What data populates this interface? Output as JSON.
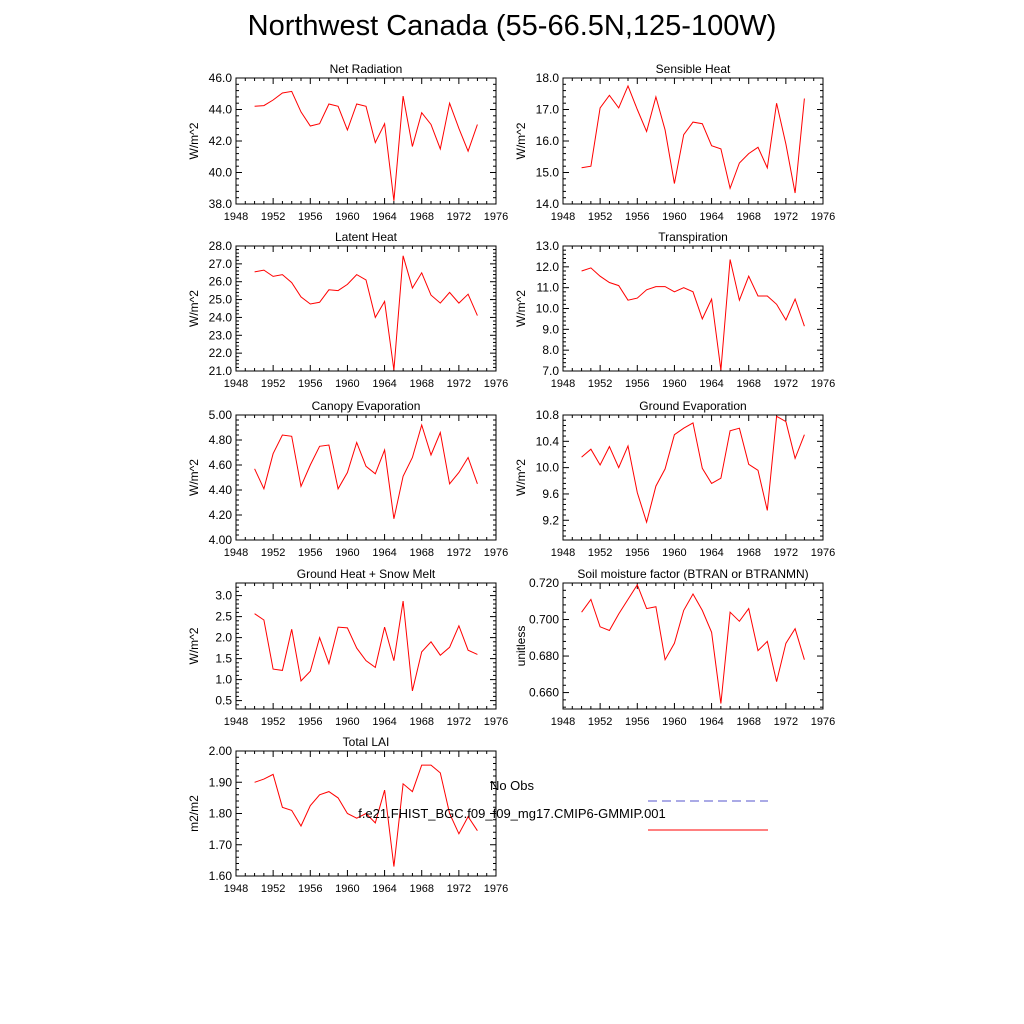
{
  "title": "Northwest Canada (55-66.5N,125-100W)",
  "legend": {
    "obs_label": "No Obs",
    "model_label": "f.e21.FHIST_BGC.f09_f09_mg17.CMIP6-GMMIP.001",
    "obs_color": "#5555cc",
    "model_color": "#ff0000"
  },
  "chart_data": [
    {
      "type": "line",
      "title": "Net Radiation",
      "ylabel": "W/m^2",
      "xlim": [
        1948,
        1976
      ],
      "ylim": [
        38.0,
        46.0
      ],
      "xticks": [
        "1948",
        "1952",
        "1956",
        "1960",
        "1964",
        "1968",
        "1972",
        "1976"
      ],
      "yticks": [
        "38.0",
        "40.0",
        "42.0",
        "44.0",
        "46.0"
      ],
      "x": [
        1950,
        1951,
        1952,
        1953,
        1954,
        1955,
        1956,
        1957,
        1958,
        1959,
        1960,
        1961,
        1962,
        1963,
        1964,
        1965,
        1966,
        1967,
        1968,
        1969,
        1970,
        1971,
        1972,
        1973,
        1974
      ],
      "series": [
        {
          "values": [
            44.2,
            44.25,
            44.6,
            45.05,
            45.15,
            43.85,
            42.95,
            43.1,
            44.35,
            44.2,
            42.7,
            44.35,
            44.2,
            41.9,
            43.1,
            38.2,
            44.85,
            41.65,
            43.8,
            43.05,
            41.5,
            44.4,
            42.8,
            41.35,
            43.05
          ]
        }
      ]
    },
    {
      "type": "line",
      "title": "Sensible Heat",
      "ylabel": "W/m^2",
      "xlim": [
        1948,
        1976
      ],
      "ylim": [
        14.0,
        18.0
      ],
      "xticks": [
        "1948",
        "1952",
        "1956",
        "1960",
        "1964",
        "1968",
        "1972",
        "1976"
      ],
      "yticks": [
        "14.0",
        "15.0",
        "16.0",
        "17.0",
        "18.0"
      ],
      "x": [
        1950,
        1951,
        1952,
        1953,
        1954,
        1955,
        1956,
        1957,
        1958,
        1959,
        1960,
        1961,
        1962,
        1963,
        1964,
        1965,
        1966,
        1967,
        1968,
        1969,
        1970,
        1971,
        1972,
        1973,
        1974
      ],
      "series": [
        {
          "values": [
            15.15,
            15.2,
            17.05,
            17.45,
            17.05,
            17.75,
            17.0,
            16.3,
            17.4,
            16.35,
            14.65,
            16.2,
            16.6,
            16.55,
            15.85,
            15.75,
            14.5,
            15.3,
            15.6,
            15.8,
            15.15,
            17.2,
            15.9,
            14.35,
            17.35
          ]
        }
      ]
    },
    {
      "type": "line",
      "title": "Latent Heat",
      "ylabel": "W/m^2",
      "xlim": [
        1948,
        1976
      ],
      "ylim": [
        21.0,
        28.0
      ],
      "xticks": [
        "1948",
        "1952",
        "1956",
        "1960",
        "1964",
        "1968",
        "1972",
        "1976"
      ],
      "yticks": [
        "21.0",
        "22.0",
        "23.0",
        "24.0",
        "25.0",
        "26.0",
        "27.0",
        "28.0"
      ],
      "x": [
        1950,
        1951,
        1952,
        1953,
        1954,
        1955,
        1956,
        1957,
        1958,
        1959,
        1960,
        1961,
        1962,
        1963,
        1964,
        1965,
        1966,
        1967,
        1968,
        1969,
        1970,
        1971,
        1972,
        1973,
        1974
      ],
      "series": [
        {
          "values": [
            26.55,
            26.65,
            26.3,
            26.4,
            25.95,
            25.15,
            24.75,
            24.85,
            25.55,
            25.5,
            25.85,
            26.4,
            26.1,
            24.0,
            24.9,
            21.05,
            27.45,
            25.65,
            26.5,
            25.25,
            24.8,
            25.4,
            24.8,
            25.3,
            24.1
          ]
        }
      ]
    },
    {
      "type": "line",
      "title": "Transpiration",
      "ylabel": "W/m^2",
      "xlim": [
        1948,
        1976
      ],
      "ylim": [
        7.0,
        13.0
      ],
      "xticks": [
        "1948",
        "1952",
        "1956",
        "1960",
        "1964",
        "1968",
        "1972",
        "1976"
      ],
      "yticks": [
        "7.0",
        "8.0",
        "9.0",
        "10.0",
        "11.0",
        "12.0",
        "13.0"
      ],
      "x": [
        1950,
        1951,
        1952,
        1953,
        1954,
        1955,
        1956,
        1957,
        1958,
        1959,
        1960,
        1961,
        1962,
        1963,
        1964,
        1965,
        1966,
        1967,
        1968,
        1969,
        1970,
        1971,
        1972,
        1973,
        1974
      ],
      "series": [
        {
          "values": [
            11.8,
            11.95,
            11.55,
            11.25,
            11.1,
            10.4,
            10.5,
            10.9,
            11.05,
            11.05,
            10.8,
            11.0,
            10.8,
            9.5,
            10.45,
            7.05,
            12.35,
            10.4,
            11.55,
            10.6,
            10.6,
            10.2,
            9.45,
            10.45,
            9.15
          ]
        }
      ]
    },
    {
      "type": "line",
      "title": "Canopy Evaporation",
      "ylabel": "W/m^2",
      "xlim": [
        1948,
        1976
      ],
      "ylim": [
        4.0,
        5.0
      ],
      "xticks": [
        "1948",
        "1952",
        "1956",
        "1960",
        "1964",
        "1968",
        "1972",
        "1976"
      ],
      "yticks": [
        "4.00",
        "4.20",
        "4.40",
        "4.60",
        "4.80",
        "5.00"
      ],
      "x": [
        1950,
        1951,
        1952,
        1953,
        1954,
        1955,
        1956,
        1957,
        1958,
        1959,
        1960,
        1961,
        1962,
        1963,
        1964,
        1965,
        1966,
        1967,
        1968,
        1969,
        1970,
        1971,
        1972,
        1973,
        1974
      ],
      "series": [
        {
          "values": [
            4.57,
            4.41,
            4.69,
            4.84,
            4.83,
            4.43,
            4.6,
            4.75,
            4.76,
            4.41,
            4.54,
            4.78,
            4.59,
            4.53,
            4.72,
            4.17,
            4.51,
            4.66,
            4.92,
            4.68,
            4.86,
            4.45,
            4.54,
            4.66,
            4.45
          ]
        }
      ]
    },
    {
      "type": "line",
      "title": "Ground Evaporation",
      "ylabel": "W/m^2",
      "xlim": [
        1948,
        1976
      ],
      "ylim": [
        8.9,
        10.8
      ],
      "xticks": [
        "1948",
        "1952",
        "1956",
        "1960",
        "1964",
        "1968",
        "1972",
        "1976"
      ],
      "yticks": [
        "9.2",
        "9.6",
        "10.0",
        "10.4",
        "10.8"
      ],
      "x": [
        1950,
        1951,
        1952,
        1953,
        1954,
        1955,
        1956,
        1957,
        1958,
        1959,
        1960,
        1961,
        1962,
        1963,
        1964,
        1965,
        1966,
        1967,
        1968,
        1969,
        1970,
        1971,
        1972,
        1973,
        1974
      ],
      "series": [
        {
          "values": [
            10.16,
            10.28,
            10.04,
            10.32,
            10.0,
            10.33,
            9.62,
            9.17,
            9.72,
            9.98,
            10.5,
            10.6,
            10.68,
            9.99,
            9.76,
            9.84,
            10.56,
            10.6,
            10.05,
            9.96,
            9.35,
            10.78,
            10.7,
            10.14,
            10.5
          ]
        }
      ]
    },
    {
      "type": "line",
      "title": "Ground Heat + Snow Melt",
      "ylabel": "W/m^2",
      "xlim": [
        1948,
        1976
      ],
      "ylim": [
        0.3,
        3.3
      ],
      "xticks": [
        "1948",
        "1952",
        "1956",
        "1960",
        "1964",
        "1968",
        "1972",
        "1976"
      ],
      "yticks": [
        "0.5",
        "1.0",
        "1.5",
        "2.0",
        "2.5",
        "3.0"
      ],
      "x": [
        1950,
        1951,
        1952,
        1953,
        1954,
        1955,
        1956,
        1957,
        1958,
        1959,
        1960,
        1961,
        1962,
        1963,
        1964,
        1965,
        1966,
        1967,
        1968,
        1969,
        1970,
        1971,
        1972,
        1973,
        1974
      ],
      "series": [
        {
          "values": [
            2.57,
            2.42,
            1.25,
            1.22,
            2.2,
            0.97,
            1.2,
            2.0,
            1.38,
            2.25,
            2.23,
            1.75,
            1.45,
            1.29,
            2.25,
            1.45,
            2.87,
            0.73,
            1.66,
            1.9,
            1.58,
            1.77,
            2.28,
            1.7,
            1.6
          ]
        }
      ]
    },
    {
      "type": "line",
      "title": "Soil moisture factor (BTRAN or BTRANMN)",
      "ylabel": "unitless",
      "xlim": [
        1948,
        1976
      ],
      "ylim": [
        0.651,
        0.72
      ],
      "xticks": [
        "1948",
        "1952",
        "1956",
        "1960",
        "1964",
        "1968",
        "1972",
        "1976"
      ],
      "yticks": [
        "0.660",
        "0.680",
        "0.700",
        "0.720"
      ],
      "x": [
        1950,
        1951,
        1952,
        1953,
        1954,
        1955,
        1956,
        1957,
        1958,
        1959,
        1960,
        1961,
        1962,
        1963,
        1964,
        1965,
        1966,
        1967,
        1968,
        1969,
        1970,
        1971,
        1972,
        1973,
        1974
      ],
      "series": [
        {
          "values": [
            0.704,
            0.711,
            0.696,
            0.694,
            0.703,
            0.711,
            0.719,
            0.706,
            0.707,
            0.678,
            0.687,
            0.705,
            0.714,
            0.705,
            0.693,
            0.654,
            0.704,
            0.699,
            0.706,
            0.683,
            0.688,
            0.666,
            0.687,
            0.695,
            0.678
          ]
        }
      ]
    },
    {
      "type": "line",
      "title": "Total LAI",
      "ylabel": "m2/m2",
      "xlim": [
        1948,
        1976
      ],
      "ylim": [
        1.6,
        2.0
      ],
      "xticks": [
        "1948",
        "1952",
        "1956",
        "1960",
        "1964",
        "1968",
        "1972",
        "1976"
      ],
      "yticks": [
        "1.60",
        "1.70",
        "1.80",
        "1.90",
        "2.00"
      ],
      "x": [
        1950,
        1951,
        1952,
        1953,
        1954,
        1955,
        1956,
        1957,
        1958,
        1959,
        1960,
        1961,
        1962,
        1963,
        1964,
        1965,
        1966,
        1967,
        1968,
        1969,
        1970,
        1971,
        1972,
        1973,
        1974
      ],
      "series": [
        {
          "values": [
            1.9,
            1.91,
            1.925,
            1.82,
            1.81,
            1.76,
            1.825,
            1.86,
            1.87,
            1.85,
            1.8,
            1.785,
            1.8,
            1.77,
            1.875,
            1.63,
            1.895,
            1.87,
            1.955,
            1.955,
            1.93,
            1.8,
            1.735,
            1.79,
            1.745
          ]
        }
      ]
    }
  ]
}
